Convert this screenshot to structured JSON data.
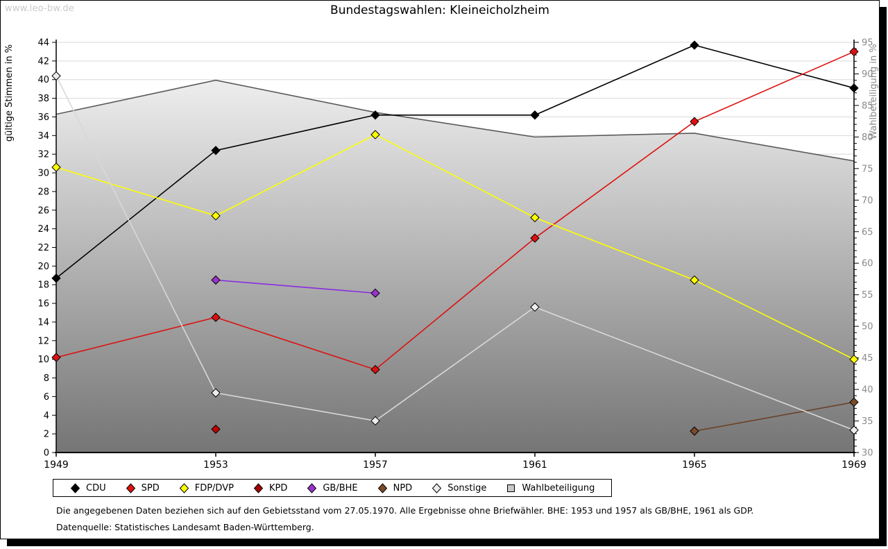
{
  "watermark": "www.leo-bw.de",
  "title": "Bundestagswahlen: Kleineicholzheim",
  "footer": {
    "line1": "Die angegebenen Daten beziehen sich auf den Gebietsstand vom 27.05.1970. Alle Ergebnisse ohne Briefwähler. BHE: 1953 und 1957 als GB/BHE, 1961 als GDP.",
    "line2": "Datenquelle: Statistisches Landesamt Baden-Württemberg."
  },
  "chart_data": {
    "type": "line",
    "x": [
      1949,
      1953,
      1957,
      1961,
      1965,
      1969
    ],
    "left_axis": {
      "label": "gültige Stimmen in %",
      "min": 0,
      "max": 44,
      "tick_step": 2
    },
    "right_axis": {
      "label": "Wahlbeteiligung in %",
      "min": 30,
      "max": 95,
      "tick_step": 5,
      "minor_tick_step": 1
    },
    "grid": true,
    "series": [
      {
        "name": "CDU",
        "axis": "left",
        "color": "#000000",
        "marker_fill": "#000000",
        "values": [
          18.7,
          32.4,
          36.2,
          36.2,
          43.7,
          39.1
        ]
      },
      {
        "name": "SPD",
        "axis": "left",
        "color": "#dd1111",
        "marker_fill": "#dd1111",
        "values": [
          10.2,
          14.5,
          8.9,
          23.0,
          35.5,
          43.0
        ]
      },
      {
        "name": "FDP/DVP",
        "axis": "left",
        "color": "#ffff00",
        "marker_fill": "#ffff00",
        "values": [
          30.6,
          25.4,
          34.1,
          25.2,
          18.5,
          10.0
        ]
      },
      {
        "name": "KPD",
        "axis": "left",
        "color": "#a40000",
        "marker_fill": "#c00000",
        "values": [
          null,
          2.5,
          null,
          null,
          null,
          null
        ]
      },
      {
        "name": "GB/BHE",
        "axis": "left",
        "color": "#8a2be2",
        "marker_fill": "#9933cc",
        "values": [
          null,
          18.5,
          17.1,
          null,
          null,
          null
        ]
      },
      {
        "name": "NPD",
        "axis": "left",
        "color": "#6b4226",
        "marker_fill": "#7b4b2a",
        "values": [
          null,
          null,
          null,
          null,
          2.3,
          5.4
        ]
      },
      {
        "name": "Sonstige",
        "axis": "left",
        "color": "#d8d8d8",
        "marker_fill": "#ececec",
        "values": [
          40.4,
          6.4,
          3.4,
          15.6,
          null,
          2.4
        ]
      }
    ],
    "area_series": {
      "name": "Wahlbeteiligung",
      "axis": "right",
      "values": [
        83.6,
        89.0,
        83.9,
        80.0,
        80.6,
        76.2
      ],
      "stroke": "#5a5a5a",
      "fill_top": "#fafafa",
      "fill_bottom": "#757575"
    },
    "legend_position": "bottom"
  },
  "legend": {
    "items": [
      {
        "label": "CDU",
        "shape": "diamond",
        "color": "#000000"
      },
      {
        "label": "SPD",
        "shape": "diamond",
        "color": "#dd1111"
      },
      {
        "label": "FDP/DVP",
        "shape": "diamond",
        "color": "#ffff00"
      },
      {
        "label": "KPD",
        "shape": "diamond",
        "color": "#a40000"
      },
      {
        "label": "GB/BHE",
        "shape": "diamond",
        "color": "#9933cc"
      },
      {
        "label": "NPD",
        "shape": "diamond",
        "color": "#7b4b2a"
      },
      {
        "label": "Sonstige",
        "shape": "diamond",
        "color": "#ececec"
      },
      {
        "label": "Wahlbeteiligung",
        "shape": "square",
        "color": "#c8c8c8"
      }
    ]
  }
}
